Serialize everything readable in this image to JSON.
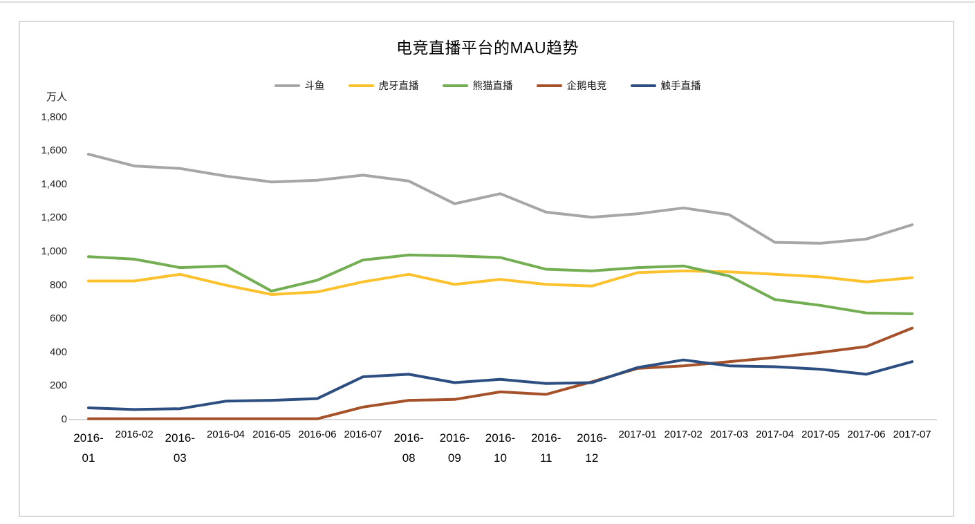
{
  "page": {
    "title": "电竞直播平台的MAU趋势",
    "unit_label": "万人"
  },
  "chart_data": {
    "type": "line",
    "title": "电竞直播平台的MAU趋势",
    "xlabel": "",
    "ylabel": "万人",
    "ylim": [
      0,
      1800
    ],
    "ytick_interval": 200,
    "ytick_labels": [
      "0",
      "200",
      "400",
      "600",
      "800",
      "1,000",
      "1,200",
      "1,400",
      "1,600",
      "1,800"
    ],
    "grid": false,
    "legend_position": "top",
    "axis_color": "#c9c9c9",
    "x": [
      "2016-01",
      "2016-02",
      "2016-03",
      "2016-04",
      "2016-05",
      "2016-06",
      "2016-07",
      "2016-08",
      "2016-09",
      "2016-10",
      "2016-11",
      "2016-12",
      "2017-01",
      "2017-02",
      "2017-03",
      "2017-04",
      "2017-05",
      "2017-06",
      "2017-07"
    ],
    "wrapped_x_labels": [
      "2016-01",
      "2016-03",
      "2016-08",
      "2016-09",
      "2016-10",
      "2016-11",
      "2016-12"
    ],
    "series": [
      {
        "id": "douyu",
        "name": "斗鱼",
        "color": "#a6a6a6",
        "values": [
          1580,
          1510,
          1495,
          1450,
          1415,
          1425,
          1455,
          1420,
          1285,
          1345,
          1235,
          1205,
          1225,
          1260,
          1220,
          1055,
          1050,
          1075,
          1160
        ]
      },
      {
        "id": "huya",
        "name": "虎牙直播",
        "color": "#fcc22d",
        "values": [
          825,
          825,
          865,
          800,
          745,
          760,
          820,
          865,
          805,
          835,
          805,
          795,
          875,
          885,
          880,
          865,
          850,
          820,
          845
        ]
      },
      {
        "id": "panda",
        "name": "熊猫直播",
        "color": "#74ae53",
        "values": [
          970,
          955,
          905,
          915,
          765,
          830,
          950,
          980,
          975,
          965,
          895,
          885,
          905,
          915,
          855,
          715,
          680,
          635,
          630
        ]
      },
      {
        "id": "penguin",
        "name": "企鹅电竞",
        "color": "#a5522a",
        "values": [
          5,
          5,
          5,
          5,
          5,
          5,
          75,
          115,
          120,
          165,
          150,
          225,
          305,
          320,
          345,
          370,
          400,
          435,
          545
        ]
      },
      {
        "id": "chushou",
        "name": "触手直播",
        "color": "#2c4e80",
        "values": [
          70,
          60,
          65,
          110,
          115,
          125,
          255,
          270,
          220,
          240,
          215,
          220,
          310,
          355,
          320,
          315,
          300,
          270,
          345
        ]
      }
    ]
  }
}
